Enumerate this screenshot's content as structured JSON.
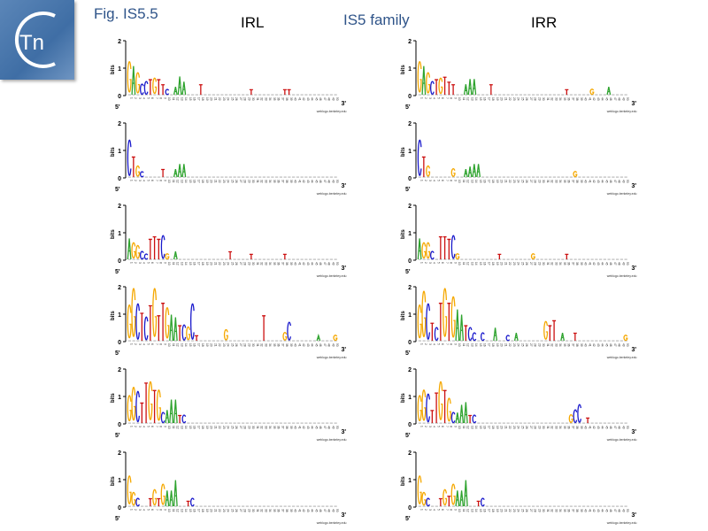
{
  "header": {
    "figure_label": "Fig. IS5.5",
    "family_label": "IS5 family",
    "left_title": "IRL",
    "right_title": "IRR",
    "brand_text": "Tn"
  },
  "colors": {
    "A": "#2ea32e",
    "C": "#1a1acc",
    "G": "#f5a800",
    "T": "#cc1111",
    "title_blue": "#2f5489"
  },
  "chart_data": {
    "type": "sequence-logo",
    "ylabel": "bits",
    "ylim": [
      0,
      2
    ],
    "yticks": [
      "0",
      "1",
      "2"
    ],
    "end5": "5'",
    "end3": "3'",
    "credit": "weblogo.berkeley.edu",
    "positions": 50,
    "logos": [
      {
        "column": "IRL",
        "peaks": [
          [
            1,
            "G",
            1.2
          ],
          [
            2,
            "A",
            1.1
          ],
          [
            3,
            "G",
            0.8
          ],
          [
            4,
            "C",
            0.4
          ],
          [
            5,
            "C",
            0.5
          ],
          [
            6,
            "T",
            0.6
          ],
          [
            7,
            "G",
            0.6
          ],
          [
            8,
            "T",
            0.6
          ],
          [
            9,
            "T",
            0.4
          ],
          [
            10,
            "C",
            0.2
          ],
          [
            12,
            "A",
            0.3
          ],
          [
            13,
            "A",
            0.7
          ],
          [
            14,
            "A",
            0.5
          ],
          [
            18,
            "T",
            0.4
          ],
          [
            30,
            "T",
            0.2
          ],
          [
            38,
            "T",
            0.2
          ],
          [
            39,
            "T",
            0.2
          ]
        ]
      },
      {
        "column": "IRL",
        "peaks": [
          [
            1,
            "C",
            1.4
          ],
          [
            2,
            "T",
            0.8
          ],
          [
            3,
            "G",
            0.4
          ],
          [
            4,
            "C",
            0.2
          ],
          [
            9,
            "T",
            0.3
          ],
          [
            12,
            "A",
            0.3
          ],
          [
            13,
            "A",
            0.5
          ],
          [
            14,
            "A",
            0.5
          ]
        ]
      },
      {
        "column": "IRL",
        "peaks": [
          [
            1,
            "A",
            0.8
          ],
          [
            2,
            "G",
            0.6
          ],
          [
            3,
            "G",
            0.5
          ],
          [
            4,
            "C",
            0.3
          ],
          [
            5,
            "C",
            0.2
          ],
          [
            6,
            "T",
            0.8
          ],
          [
            7,
            "T",
            0.9
          ],
          [
            8,
            "T",
            0.8
          ],
          [
            9,
            "C",
            0.9
          ],
          [
            10,
            "G",
            0.2
          ],
          [
            12,
            "A",
            0.3
          ],
          [
            25,
            "T",
            0.3
          ],
          [
            30,
            "T",
            0.2
          ],
          [
            38,
            "T",
            0.2
          ]
        ]
      },
      {
        "column": "IRL",
        "peaks": [
          [
            1,
            "G",
            1.3
          ],
          [
            2,
            "G",
            1.9
          ],
          [
            3,
            "C",
            1.4
          ],
          [
            4,
            "T",
            1.1
          ],
          [
            5,
            "C",
            0.9
          ],
          [
            6,
            "T",
            1.4
          ],
          [
            7,
            "G",
            1.9
          ],
          [
            8,
            "T",
            1.0
          ],
          [
            9,
            "T",
            1.5
          ],
          [
            10,
            "G",
            1.2
          ],
          [
            11,
            "A",
            1.0
          ],
          [
            12,
            "A",
            0.9
          ],
          [
            13,
            "T",
            0.6
          ],
          [
            14,
            "C",
            0.6
          ],
          [
            15,
            "G",
            0.5
          ],
          [
            16,
            "C",
            1.4
          ],
          [
            17,
            "T",
            0.2
          ],
          [
            24,
            "G",
            0.4
          ],
          [
            33,
            "T",
            1.0
          ],
          [
            38,
            "G",
            0.3
          ],
          [
            39,
            "C",
            0.7
          ],
          [
            46,
            "A",
            0.2
          ],
          [
            50,
            "G",
            0.2
          ]
        ]
      },
      {
        "column": "IRL",
        "peaks": [
          [
            1,
            "G",
            1.0
          ],
          [
            2,
            "G",
            1.3
          ],
          [
            3,
            "C",
            1.2
          ],
          [
            4,
            "T",
            0.8
          ],
          [
            5,
            "T",
            1.6
          ],
          [
            6,
            "G",
            1.5
          ],
          [
            7,
            "T",
            1.3
          ],
          [
            8,
            "G",
            1.2
          ],
          [
            9,
            "C",
            0.4
          ],
          [
            10,
            "A",
            0.5
          ],
          [
            11,
            "A",
            0.9
          ],
          [
            12,
            "A",
            0.9
          ],
          [
            13,
            "T",
            0.3
          ],
          [
            14,
            "C",
            0.3
          ]
        ]
      },
      {
        "column": "IRL",
        "peaks": [
          [
            1,
            "G",
            1.1
          ],
          [
            2,
            "G",
            0.5
          ],
          [
            3,
            "C",
            0.3
          ],
          [
            6,
            "T",
            0.3
          ],
          [
            7,
            "G",
            0.6
          ],
          [
            8,
            "T",
            0.3
          ],
          [
            9,
            "G",
            0.8
          ],
          [
            10,
            "A",
            0.6
          ],
          [
            11,
            "A",
            0.6
          ],
          [
            12,
            "A",
            1.0
          ],
          [
            15,
            "T",
            0.2
          ],
          [
            16,
            "C",
            0.3
          ]
        ]
      },
      {
        "column": "IRR",
        "peaks": [
          [
            1,
            "G",
            1.2
          ],
          [
            2,
            "A",
            1.1
          ],
          [
            3,
            "G",
            0.8
          ],
          [
            4,
            "C",
            0.5
          ],
          [
            5,
            "T",
            0.6
          ],
          [
            6,
            "G",
            0.6
          ],
          [
            7,
            "T",
            0.7
          ],
          [
            8,
            "T",
            0.5
          ],
          [
            9,
            "T",
            0.4
          ],
          [
            12,
            "A",
            0.4
          ],
          [
            13,
            "A",
            0.6
          ],
          [
            14,
            "A",
            0.6
          ],
          [
            18,
            "T",
            0.4
          ],
          [
            36,
            "T",
            0.2
          ],
          [
            42,
            "G",
            0.2
          ],
          [
            46,
            "A",
            0.3
          ]
        ]
      },
      {
        "column": "IRR",
        "peaks": [
          [
            1,
            "C",
            1.4
          ],
          [
            2,
            "T",
            0.8
          ],
          [
            3,
            "G",
            0.4
          ],
          [
            9,
            "G",
            0.3
          ],
          [
            12,
            "A",
            0.3
          ],
          [
            13,
            "A",
            0.4
          ],
          [
            14,
            "A",
            0.5
          ],
          [
            15,
            "A",
            0.5
          ],
          [
            38,
            "G",
            0.2
          ]
        ]
      },
      {
        "column": "IRR",
        "peaks": [
          [
            1,
            "A",
            0.8
          ],
          [
            2,
            "G",
            0.6
          ],
          [
            3,
            "G",
            0.6
          ],
          [
            4,
            "C",
            0.3
          ],
          [
            6,
            "T",
            0.9
          ],
          [
            7,
            "T",
            0.9
          ],
          [
            8,
            "T",
            0.8
          ],
          [
            9,
            "C",
            0.9
          ],
          [
            10,
            "G",
            0.2
          ],
          [
            20,
            "T",
            0.2
          ],
          [
            28,
            "G",
            0.2
          ],
          [
            36,
            "T",
            0.2
          ]
        ]
      },
      {
        "column": "IRR",
        "peaks": [
          [
            1,
            "G",
            1.3
          ],
          [
            2,
            "G",
            1.8
          ],
          [
            3,
            "C",
            1.4
          ],
          [
            4,
            "T",
            0.7
          ],
          [
            5,
            "C",
            0.5
          ],
          [
            6,
            "T",
            1.5
          ],
          [
            7,
            "G",
            1.9
          ],
          [
            8,
            "T",
            1.5
          ],
          [
            9,
            "G",
            1.6
          ],
          [
            10,
            "A",
            1.2
          ],
          [
            11,
            "A",
            1.0
          ],
          [
            12,
            "T",
            0.6
          ],
          [
            13,
            "C",
            0.5
          ],
          [
            14,
            "C",
            0.3
          ],
          [
            16,
            "C",
            0.3
          ],
          [
            19,
            "A",
            0.5
          ],
          [
            22,
            "C",
            0.2
          ],
          [
            24,
            "A",
            0.3
          ],
          [
            31,
            "G",
            0.7
          ],
          [
            32,
            "T",
            0.6
          ],
          [
            33,
            "T",
            0.8
          ],
          [
            35,
            "A",
            0.3
          ],
          [
            38,
            "T",
            0.3
          ],
          [
            50,
            "G",
            0.2
          ]
        ]
      },
      {
        "column": "IRR",
        "peaks": [
          [
            1,
            "G",
            1.0
          ],
          [
            2,
            "G",
            1.2
          ],
          [
            3,
            "C",
            1.1
          ],
          [
            4,
            "T",
            0.5
          ],
          [
            5,
            "T",
            1.2
          ],
          [
            6,
            "G",
            1.5
          ],
          [
            7,
            "T",
            1.3
          ],
          [
            8,
            "G",
            0.9
          ],
          [
            9,
            "C",
            0.4
          ],
          [
            10,
            "A",
            0.4
          ],
          [
            11,
            "A",
            0.7
          ],
          [
            12,
            "A",
            0.8
          ],
          [
            13,
            "T",
            0.3
          ],
          [
            14,
            "C",
            0.3
          ],
          [
            37,
            "G",
            0.3
          ],
          [
            38,
            "C",
            0.5
          ],
          [
            39,
            "C",
            0.7
          ],
          [
            41,
            "T",
            0.2
          ]
        ]
      },
      {
        "column": "IRR",
        "peaks": [
          [
            1,
            "G",
            1.1
          ],
          [
            2,
            "G",
            0.5
          ],
          [
            3,
            "C",
            0.3
          ],
          [
            6,
            "T",
            0.3
          ],
          [
            7,
            "G",
            0.6
          ],
          [
            8,
            "T",
            0.4
          ],
          [
            9,
            "G",
            0.8
          ],
          [
            10,
            "A",
            0.6
          ],
          [
            11,
            "A",
            0.6
          ],
          [
            12,
            "A",
            1.0
          ],
          [
            15,
            "T",
            0.2
          ],
          [
            16,
            "C",
            0.3
          ]
        ]
      }
    ]
  }
}
